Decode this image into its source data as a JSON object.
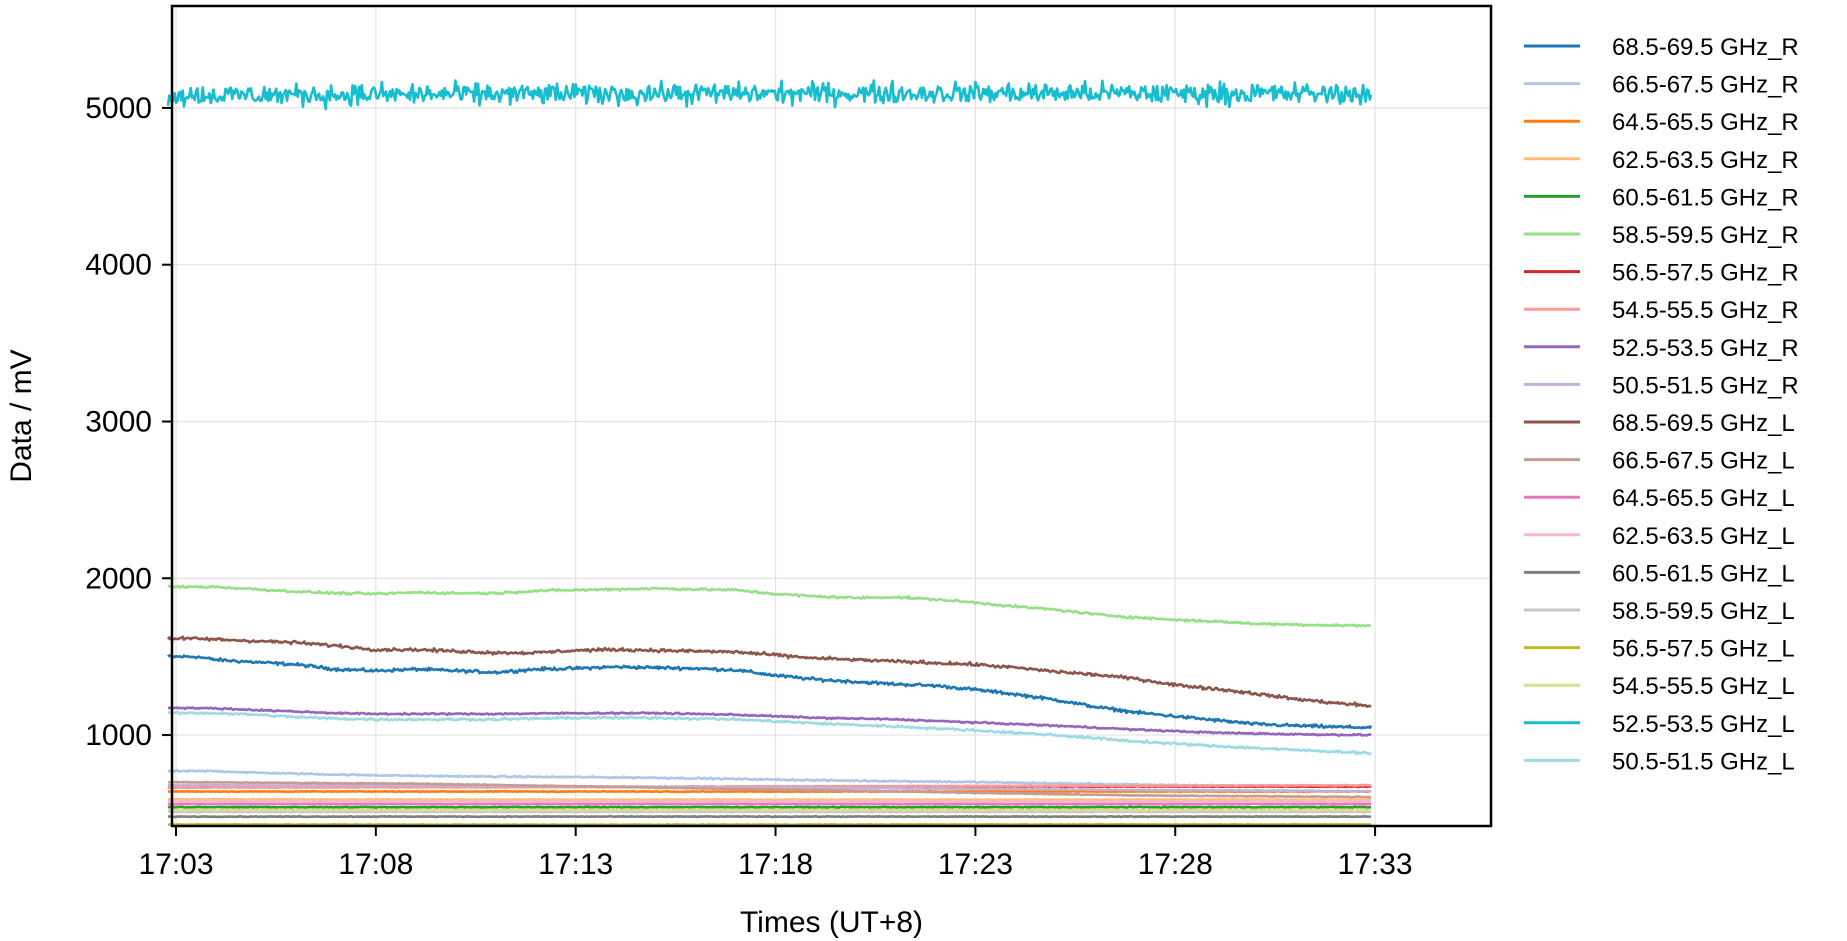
{
  "chart_data": {
    "type": "line",
    "xlabel": "Times (UT+8)",
    "ylabel": "Data / mV",
    "xlim": [
      -0.1,
      32.9
    ],
    "ylim": [
      420,
      5650
    ],
    "xticks": [
      {
        "value": 0,
        "label": "17:03"
      },
      {
        "value": 5,
        "label": "17:08"
      },
      {
        "value": 10,
        "label": "17:13"
      },
      {
        "value": 15,
        "label": "17:18"
      },
      {
        "value": 20,
        "label": "17:23"
      },
      {
        "value": 25,
        "label": "17:28"
      },
      {
        "value": 30,
        "label": "17:33"
      }
    ],
    "yticks": [
      1000,
      2000,
      3000,
      4000,
      5000
    ],
    "grid": true,
    "legend_position": "outside-right",
    "x_start": -0.2,
    "x_end": 29.9,
    "series": [
      {
        "name": "68.5-69.5 GHz_R",
        "color": "#1f77b4",
        "noise": 8,
        "points": [
          [
            -0.2,
            1500
          ],
          [
            0.5,
            1500
          ],
          [
            1,
            1480
          ],
          [
            2,
            1465
          ],
          [
            3,
            1450
          ],
          [
            4,
            1420
          ],
          [
            5,
            1410
          ],
          [
            6,
            1420
          ],
          [
            7,
            1410
          ],
          [
            8,
            1400
          ],
          [
            9,
            1420
          ],
          [
            10,
            1425
          ],
          [
            11,
            1435
          ],
          [
            12,
            1430
          ],
          [
            13,
            1425
          ],
          [
            14,
            1415
          ],
          [
            15,
            1380
          ],
          [
            16,
            1355
          ],
          [
            17,
            1340
          ],
          [
            18,
            1325
          ],
          [
            19,
            1315
          ],
          [
            20,
            1290
          ],
          [
            21,
            1260
          ],
          [
            22,
            1225
          ],
          [
            23,
            1180
          ],
          [
            24,
            1145
          ],
          [
            25,
            1120
          ],
          [
            26,
            1095
          ],
          [
            27,
            1070
          ],
          [
            28,
            1060
          ],
          [
            29,
            1052
          ],
          [
            29.9,
            1048
          ]
        ]
      },
      {
        "name": "66.5-67.5 GHz_R",
        "color": "#aec7e8",
        "noise": 4,
        "points": [
          [
            -0.2,
            770
          ],
          [
            1,
            770
          ],
          [
            2,
            760
          ],
          [
            4,
            748
          ],
          [
            6,
            740
          ],
          [
            8,
            735
          ],
          [
            10,
            732
          ],
          [
            12,
            728
          ],
          [
            14,
            720
          ],
          [
            16,
            712
          ],
          [
            18,
            706
          ],
          [
            20,
            700
          ],
          [
            22,
            692
          ],
          [
            24,
            684
          ],
          [
            26,
            678
          ],
          [
            28,
            675
          ],
          [
            29.9,
            673
          ]
        ]
      },
      {
        "name": "64.5-65.5 GHz_R",
        "color": "#ff7f0e",
        "noise": 2,
        "points": [
          [
            -0.2,
            640
          ],
          [
            10,
            640
          ],
          [
            20,
            640
          ],
          [
            29.9,
            640
          ]
        ]
      },
      {
        "name": "62.5-63.5 GHz_R",
        "color": "#ffbb78",
        "noise": 2,
        "points": [
          [
            -0.2,
            590
          ],
          [
            10,
            588
          ],
          [
            20,
            588
          ],
          [
            29.9,
            588
          ]
        ]
      },
      {
        "name": "60.5-61.5 GHz_R",
        "color": "#2ca02c",
        "noise": 2,
        "points": [
          [
            -0.2,
            540
          ],
          [
            10,
            540
          ],
          [
            20,
            540
          ],
          [
            29.9,
            540
          ]
        ]
      },
      {
        "name": "58.5-59.5 GHz_R",
        "color": "#98df8a",
        "noise": 6,
        "points": [
          [
            -0.2,
            1945
          ],
          [
            1,
            1945
          ],
          [
            2,
            1930
          ],
          [
            3,
            1915
          ],
          [
            4,
            1905
          ],
          [
            5,
            1900
          ],
          [
            6,
            1910
          ],
          [
            7,
            1905
          ],
          [
            8,
            1905
          ],
          [
            9,
            1920
          ],
          [
            10,
            1925
          ],
          [
            11,
            1930
          ],
          [
            12,
            1935
          ],
          [
            13,
            1930
          ],
          [
            14,
            1925
          ],
          [
            15,
            1900
          ],
          [
            16,
            1885
          ],
          [
            17,
            1875
          ],
          [
            18,
            1880
          ],
          [
            19,
            1865
          ],
          [
            20,
            1845
          ],
          [
            21,
            1820
          ],
          [
            22,
            1800
          ],
          [
            23,
            1770
          ],
          [
            24,
            1750
          ],
          [
            25,
            1735
          ],
          [
            26,
            1725
          ],
          [
            27,
            1710
          ],
          [
            28,
            1705
          ],
          [
            29,
            1700
          ],
          [
            29.9,
            1698
          ]
        ]
      },
      {
        "name": "56.5-57.5 GHz_R",
        "color": "#d62728",
        "noise": 2,
        "points": [
          [
            -0.2,
            670
          ],
          [
            10,
            670
          ],
          [
            20,
            672
          ],
          [
            29.9,
            672
          ]
        ]
      },
      {
        "name": "54.5-55.5 GHz_R",
        "color": "#ff9896",
        "noise": 2,
        "points": [
          [
            -0.2,
            665
          ],
          [
            10,
            668
          ],
          [
            20,
            675
          ],
          [
            29.9,
            680
          ]
        ]
      },
      {
        "name": "52.5-53.5 GHz_R",
        "color": "#9467bd",
        "noise": 4,
        "points": [
          [
            -0.2,
            1175
          ],
          [
            1,
            1170
          ],
          [
            2,
            1160
          ],
          [
            3,
            1150
          ],
          [
            4,
            1140
          ],
          [
            5,
            1135
          ],
          [
            6,
            1135
          ],
          [
            8,
            1135
          ],
          [
            10,
            1140
          ],
          [
            12,
            1140
          ],
          [
            14,
            1130
          ],
          [
            16,
            1110
          ],
          [
            18,
            1100
          ],
          [
            20,
            1080
          ],
          [
            22,
            1060
          ],
          [
            24,
            1035
          ],
          [
            26,
            1015
          ],
          [
            28,
            1005
          ],
          [
            29.9,
            1000
          ]
        ]
      },
      {
        "name": "50.5-51.5 GHz_R",
        "color": "#c5b0d5",
        "noise": 2,
        "points": [
          [
            -0.2,
            680
          ],
          [
            6,
            678
          ],
          [
            12,
            670
          ],
          [
            18,
            660
          ],
          [
            24,
            650
          ],
          [
            29.9,
            642
          ]
        ]
      },
      {
        "name": "68.5-69.5 GHz_L",
        "color": "#8c564b",
        "noise": 8,
        "points": [
          [
            -0.2,
            1615
          ],
          [
            0.5,
            1615
          ],
          [
            1,
            1610
          ],
          [
            2,
            1600
          ],
          [
            3,
            1590
          ],
          [
            4,
            1570
          ],
          [
            5,
            1545
          ],
          [
            6,
            1545
          ],
          [
            7,
            1535
          ],
          [
            8,
            1525
          ],
          [
            9,
            1525
          ],
          [
            10,
            1540
          ],
          [
            11,
            1545
          ],
          [
            12,
            1540
          ],
          [
            13,
            1535
          ],
          [
            14,
            1530
          ],
          [
            15,
            1510
          ],
          [
            16,
            1490
          ],
          [
            17,
            1480
          ],
          [
            18,
            1470
          ],
          [
            19,
            1460
          ],
          [
            20,
            1450
          ],
          [
            21,
            1430
          ],
          [
            22,
            1405
          ],
          [
            23,
            1385
          ],
          [
            24,
            1360
          ],
          [
            25,
            1320
          ],
          [
            26,
            1295
          ],
          [
            27,
            1265
          ],
          [
            28,
            1230
          ],
          [
            29,
            1205
          ],
          [
            29.9,
            1185
          ]
        ]
      },
      {
        "name": "66.5-67.5 GHz_L",
        "color": "#c49c94",
        "noise": 2,
        "points": [
          [
            -0.2,
            700
          ],
          [
            6,
            690
          ],
          [
            12,
            665
          ],
          [
            18,
            640
          ],
          [
            24,
            615
          ],
          [
            29.9,
            605
          ]
        ]
      },
      {
        "name": "64.5-65.5 GHz_L",
        "color": "#e377c2",
        "noise": 2,
        "points": [
          [
            -0.2,
            560
          ],
          [
            10,
            560
          ],
          [
            20,
            560
          ],
          [
            29.9,
            560
          ]
        ]
      },
      {
        "name": "62.5-63.5 GHz_L",
        "color": "#f7b6d2",
        "noise": 2,
        "points": [
          [
            -0.2,
            575
          ],
          [
            10,
            575
          ],
          [
            20,
            575
          ],
          [
            29.9,
            575
          ]
        ]
      },
      {
        "name": "60.5-61.5 GHz_L",
        "color": "#7f7f7f",
        "noise": 2,
        "points": [
          [
            -0.2,
            480
          ],
          [
            10,
            480
          ],
          [
            20,
            480
          ],
          [
            29.9,
            480
          ]
        ]
      },
      {
        "name": "58.5-59.5 GHz_L",
        "color": "#c7c7c7",
        "noise": 2,
        "points": [
          [
            -0.2,
            510
          ],
          [
            10,
            510
          ],
          [
            20,
            510
          ],
          [
            29.9,
            510
          ]
        ]
      },
      {
        "name": "56.5-57.5 GHz_L",
        "color": "#bcbd22",
        "noise": 2,
        "points": [
          [
            -0.2,
            430
          ],
          [
            10,
            428
          ],
          [
            20,
            430
          ],
          [
            29.9,
            430
          ]
        ]
      },
      {
        "name": "54.5-55.5 GHz_L",
        "color": "#dbdb8d",
        "noise": 2,
        "points": [
          [
            -0.2,
            520
          ],
          [
            10,
            520
          ],
          [
            20,
            520
          ],
          [
            29.9,
            520
          ]
        ]
      },
      {
        "name": "52.5-53.5 GHz_L",
        "color": "#17becf",
        "noise": 55,
        "points": [
          [
            -0.2,
            5080
          ],
          [
            10,
            5090
          ],
          [
            20,
            5095
          ],
          [
            29.9,
            5090
          ]
        ]
      },
      {
        "name": "50.5-51.5 GHz_L",
        "color": "#9edae5",
        "noise": 6,
        "points": [
          [
            -0.2,
            1140
          ],
          [
            1,
            1140
          ],
          [
            2,
            1130
          ],
          [
            3,
            1115
          ],
          [
            4,
            1105
          ],
          [
            5,
            1100
          ],
          [
            6,
            1100
          ],
          [
            8,
            1100
          ],
          [
            10,
            1110
          ],
          [
            12,
            1110
          ],
          [
            14,
            1100
          ],
          [
            16,
            1075
          ],
          [
            18,
            1055
          ],
          [
            20,
            1030
          ],
          [
            22,
            1000
          ],
          [
            24,
            960
          ],
          [
            26,
            930
          ],
          [
            28,
            905
          ],
          [
            29.9,
            885
          ]
        ]
      }
    ]
  }
}
